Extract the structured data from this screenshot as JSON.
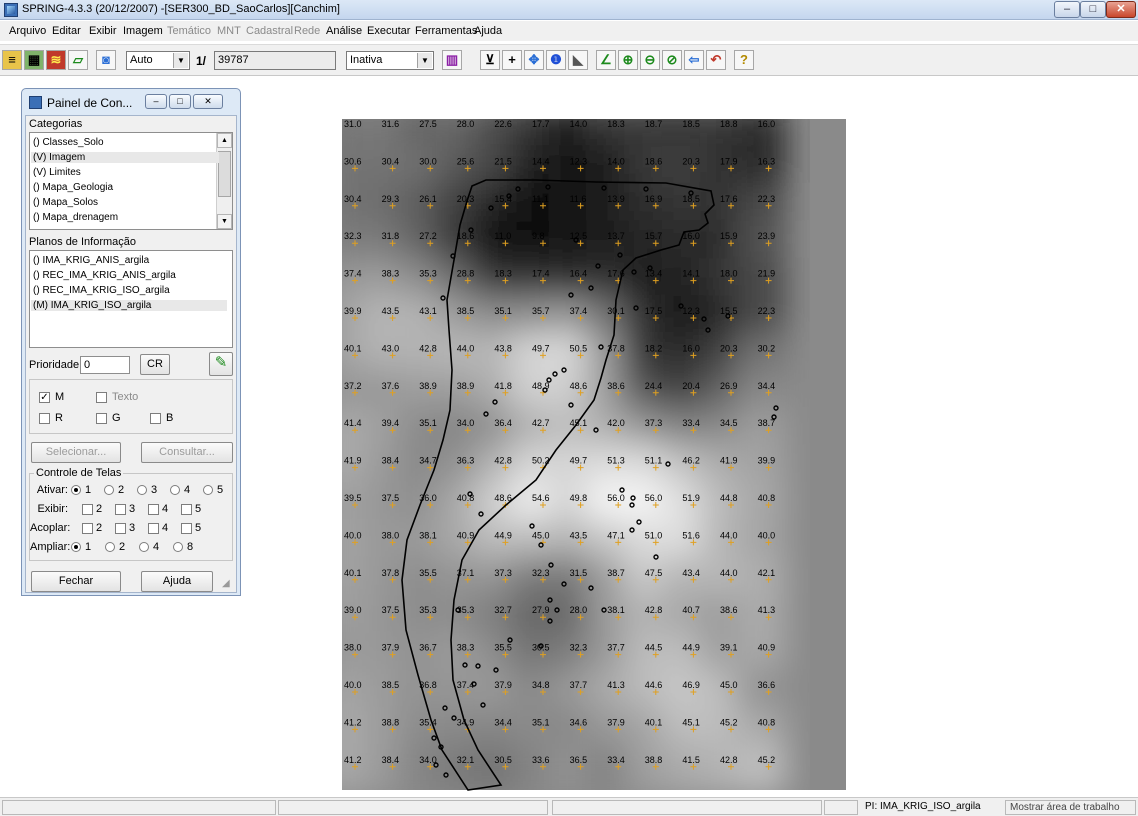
{
  "window": {
    "title": "SPRING-4.3.3 (20/12/2007) -[SER300_BD_SaoCarlos][Canchim]",
    "min": "–",
    "max": "□",
    "close": "✕"
  },
  "menu": [
    {
      "label": "Arquivo",
      "enabled": true
    },
    {
      "label": "Editar",
      "enabled": true
    },
    {
      "label": "Exibir",
      "enabled": true
    },
    {
      "label": "Imagem",
      "enabled": true
    },
    {
      "label": "Temático",
      "enabled": false
    },
    {
      "label": "MNT",
      "enabled": false
    },
    {
      "label": "Cadastral",
      "enabled": false
    },
    {
      "label": "Rede",
      "enabled": false
    },
    {
      "label": "Análise",
      "enabled": true
    },
    {
      "label": "Executar",
      "enabled": true
    },
    {
      "label": "Ferramentas",
      "enabled": true
    },
    {
      "label": "Ajuda",
      "enabled": true
    }
  ],
  "toolbar": {
    "scale_mode": "Auto",
    "scale_prefix": "1/",
    "scale_value": "39787",
    "cursor_mode": "Inativa",
    "help_glyph": "?"
  },
  "panel": {
    "title": "Painel de Con...",
    "categorias_label": "Categorias",
    "categorias": [
      {
        "label": "() Classes_Solo",
        "selected": false
      },
      {
        "label": "(V) Imagem",
        "selected": true
      },
      {
        "label": "(V) Limites",
        "selected": false
      },
      {
        "label": "() Mapa_Geologia",
        "selected": false
      },
      {
        "label": "() Mapa_Solos",
        "selected": false
      },
      {
        "label": "() Mapa_drenagem",
        "selected": false
      }
    ],
    "planos_label": "Planos de Informação",
    "planos": [
      {
        "label": "() IMA_KRIG_ANIS_argila",
        "selected": false
      },
      {
        "label": "() REC_IMA_KRIG_ANIS_argila",
        "selected": false
      },
      {
        "label": "() REC_IMA_KRIG_ISO_argila",
        "selected": false
      },
      {
        "label": "(M) IMA_KRIG_ISO_argila",
        "selected": true
      }
    ],
    "prioridade_label": "Prioridade:",
    "prioridade_value": "0",
    "cr_label": "CR",
    "chk_m": "M",
    "chk_texto": "Texto",
    "chk_r": "R",
    "chk_g": "G",
    "chk_b": "B",
    "m_checked": true,
    "selecionar": "Selecionar...",
    "consultar": "Consultar...",
    "controle_label": "Controle de Telas",
    "ativar_label": "Ativar:",
    "exibir_label": "Exibir:",
    "acoplar_label": "Acoplar:",
    "ampliar_label": "Ampliar:",
    "screens": [
      "1",
      "2",
      "3",
      "4",
      "5"
    ],
    "zoom_options": [
      "1",
      "2",
      "4",
      "8"
    ],
    "fechar": "Fechar",
    "ajuda": "Ajuda"
  },
  "map": {
    "grid_values": [
      [
        "31.0",
        "31.6",
        "27.5",
        "28.0",
        "22.6",
        "17.7",
        "14.0",
        "18.3",
        "18.7",
        "18.5",
        "18.8",
        "16.0"
      ],
      [
        "30.6",
        "30.4",
        "30.0",
        "25.6",
        "21.5",
        "14.4",
        "12.3",
        "14.0",
        "18.6",
        "20.3",
        "17.9",
        "16.3"
      ],
      [
        "30.4",
        "29.3",
        "26.1",
        "20.3",
        "15.4",
        "11.1",
        "11.6",
        "13.9",
        "16.9",
        "18.5",
        "17.6",
        "22.3"
      ],
      [
        "32.3",
        "31.8",
        "27.2",
        "18.6",
        "11.0",
        "9.8",
        "12.5",
        "13.7",
        "15.7",
        "16.0",
        "15.9",
        "23.9"
      ],
      [
        "37.4",
        "38.3",
        "35.3",
        "28.8",
        "18.3",
        "17.4",
        "16.4",
        "17.6",
        "13.4",
        "14.1",
        "18.0",
        "21.9"
      ],
      [
        "39.9",
        "43.5",
        "43.1",
        "38.5",
        "35.1",
        "35.7",
        "37.4",
        "30.1",
        "17.5",
        "12.3",
        "15.5",
        "22.3"
      ],
      [
        "40.1",
        "43.0",
        "42.8",
        "44.0",
        "43.8",
        "49.7",
        "50.5",
        "37.8",
        "18.2",
        "16.0",
        "20.3",
        "30.2"
      ],
      [
        "37.2",
        "37.6",
        "38.9",
        "38.9",
        "41.8",
        "48.9",
        "48.6",
        "38.6",
        "24.4",
        "20.4",
        "26.9",
        "34.4"
      ],
      [
        "41.4",
        "39.4",
        "35.1",
        "34.0",
        "36.4",
        "42.7",
        "45.1",
        "42.0",
        "37.3",
        "33.4",
        "34.5",
        "38.7"
      ],
      [
        "41.9",
        "38.4",
        "34.7",
        "36.3",
        "42.8",
        "50.2",
        "49.7",
        "51.3",
        "51.1",
        "46.2",
        "41.9",
        "39.9"
      ],
      [
        "39.5",
        "37.5",
        "36.0",
        "40.8",
        "48.6",
        "54.6",
        "49.8",
        "56.0",
        "56.0",
        "51.9",
        "44.8",
        "40.8"
      ],
      [
        "40.0",
        "38.0",
        "38.1",
        "40.9",
        "44.9",
        "45.0",
        "43.5",
        "47.1",
        "51.0",
        "51.6",
        "44.0",
        "40.0"
      ],
      [
        "40.1",
        "37.8",
        "35.5",
        "37.1",
        "37.3",
        "32.3",
        "31.5",
        "38.7",
        "47.5",
        "43.4",
        "44.0",
        "42.1"
      ],
      [
        "39.0",
        "37.5",
        "35.3",
        "35.3",
        "32.7",
        "27.9",
        "28.0",
        "38.1",
        "42.8",
        "40.7",
        "38.6",
        "41.3"
      ],
      [
        "38.0",
        "37.9",
        "36.7",
        "38.3",
        "35.5",
        "30.5",
        "32.3",
        "37.7",
        "44.5",
        "44.9",
        "39.1",
        "40.9"
      ],
      [
        "40.0",
        "38.5",
        "36.8",
        "37.4",
        "37.9",
        "34.8",
        "37.7",
        "41.3",
        "44.6",
        "46.9",
        "45.0",
        "36.6"
      ],
      [
        "41.2",
        "38.8",
        "35.4",
        "34.9",
        "34.4",
        "35.1",
        "34.6",
        "37.9",
        "40.1",
        "45.1",
        "45.2",
        "40.8"
      ],
      [
        "41.2",
        "38.4",
        "34.0",
        "32.1",
        "30.5",
        "33.6",
        "36.5",
        "33.4",
        "38.8",
        "41.5",
        "42.8",
        "45.2"
      ]
    ]
  },
  "status": {
    "pi": "PI: IMA_KRIG_ISO_argila",
    "workarea": "Mostrar área de trabalho"
  }
}
